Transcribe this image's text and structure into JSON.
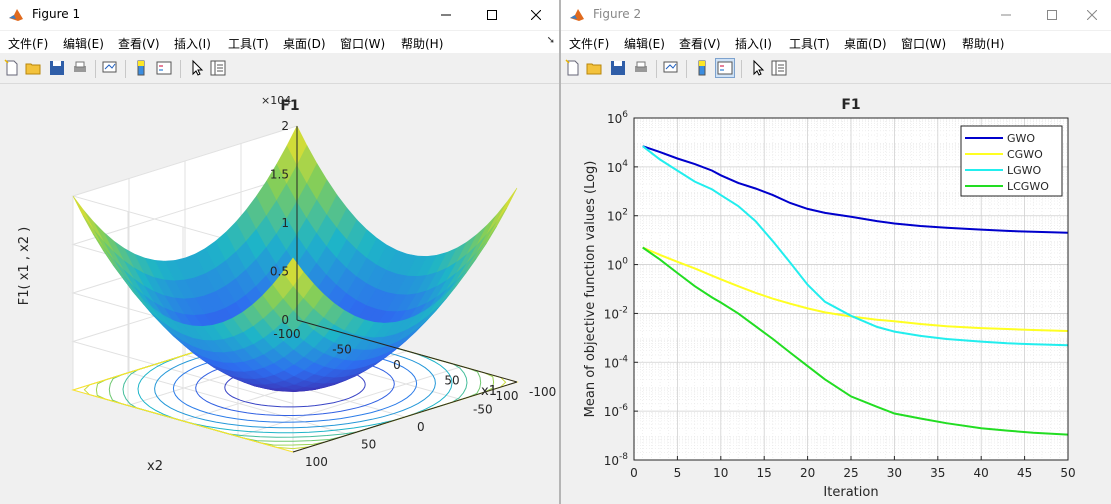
{
  "window1": {
    "title": "Figure 1",
    "menus": [
      "文件(F)",
      "编辑(E)",
      "查看(V)",
      "插入(I)",
      "工具(T)",
      "桌面(D)",
      "窗口(W)",
      "帮助(H)"
    ]
  },
  "window2": {
    "title": "Figure 2",
    "menus": [
      "文件(F)",
      "编辑(E)",
      "查看(V)",
      "插入(I)",
      "工具(T)",
      "桌面(D)",
      "窗口(W)",
      "帮助(H)"
    ]
  },
  "toolbar_icons": [
    "new-figure-icon",
    "open-file-icon",
    "save-icon",
    "print-icon",
    "link-plot-icon",
    "colorbar-icon",
    "legend-icon",
    "edit-plot-arrow-icon",
    "property-inspector-icon"
  ],
  "colors": {
    "gwo": "#0000cc",
    "cgwo": "#ffff22",
    "lgwo": "#22eeee",
    "lcgwo": "#22dd22",
    "surface_low": "#3b4cc0",
    "surface_mid": "#20b2aa",
    "surface_high": "#fde725"
  },
  "chart_data": [
    {
      "type": "surface",
      "title": "F1",
      "xlabel": "x1",
      "ylabel": "x2",
      "zlabel": "F1( x1 , x2 )",
      "x_ticks": [
        "-100",
        "-50",
        "0",
        "50",
        "100"
      ],
      "y_ticks": [
        "-100",
        "-50",
        "0",
        "50",
        "100"
      ],
      "z_ticks": [
        "0",
        "0.5",
        "1",
        "1.5",
        "2"
      ],
      "z_exponent": "×10^4",
      "xlim": [
        -100,
        100
      ],
      "ylim": [
        -100,
        100
      ],
      "zlim": [
        0,
        20000
      ],
      "function": "x1^2 + x2^2",
      "contour_below": true,
      "grid": true
    },
    {
      "type": "line",
      "title": "F1",
      "xlabel": "Iteration",
      "ylabel": "Mean of objective function values (Log)",
      "yscale": "log",
      "xlim": [
        0,
        50
      ],
      "ylim": [
        1e-08,
        1000000.0
      ],
      "x_ticks": [
        0,
        5,
        10,
        15,
        20,
        25,
        30,
        35,
        40,
        45,
        50
      ],
      "y_ticks": [
        -8,
        -6,
        -4,
        -2,
        0,
        2,
        4,
        6
      ],
      "legend_position": "top-right",
      "grid": true,
      "x": [
        1,
        3,
        5,
        7,
        9,
        10,
        12,
        14,
        16,
        18,
        20,
        22,
        25,
        28,
        30,
        33,
        36,
        40,
        43,
        46,
        50
      ],
      "series": [
        {
          "name": "GWO",
          "values": [
            70000,
            40000,
            22000,
            13000,
            7000,
            4500,
            2200,
            1300,
            700,
            330,
            190,
            130,
            90,
            60,
            48,
            38,
            32,
            27,
            24,
            22,
            20
          ]
        },
        {
          "name": "CGWO",
          "values": [
            5,
            2.5,
            1.3,
            0.7,
            0.35,
            0.25,
            0.13,
            0.07,
            0.04,
            0.025,
            0.016,
            0.011,
            0.0075,
            0.0055,
            0.0048,
            0.0037,
            0.003,
            0.0025,
            0.0023,
            0.0021,
            0.0019
          ]
        },
        {
          "name": "LGWO",
          "values": [
            70000,
            20000,
            7000,
            2500,
            1200,
            700,
            250,
            60,
            9,
            1.2,
            0.15,
            0.03,
            0.008,
            0.0028,
            0.0018,
            0.0012,
            0.0009,
            0.0007,
            0.0006,
            0.00055,
            0.0005
          ]
        },
        {
          "name": "LCGWO",
          "values": [
            5,
            1.6,
            0.45,
            0.13,
            0.045,
            0.028,
            0.01,
            0.003,
            0.0009,
            0.00025,
            7e-05,
            2e-05,
            4e-06,
            1.5e-06,
            8e-07,
            5e-07,
            3.2e-07,
            2e-07,
            1.6e-07,
            1.3e-07,
            1.1e-07
          ]
        }
      ]
    }
  ]
}
